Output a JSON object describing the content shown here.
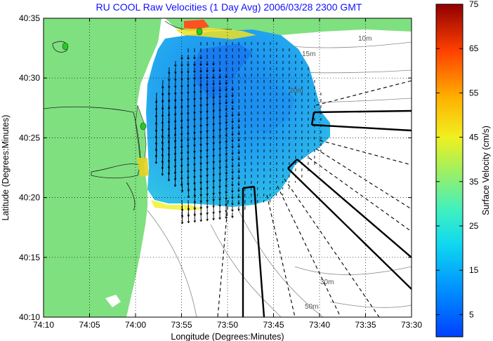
{
  "title": "RU COOL Raw Velocities (1 Day Avg) 2006/03/28 2300 GMT",
  "map": {
    "x_axis_label": "Longitude (Degrees:Minutes)",
    "y_axis_label": "Latitude (Degrees:Minutes)",
    "x_ticks": [
      "74:10",
      "74:05",
      "74:00",
      "73:55",
      "73:50",
      "73:45",
      "73:40",
      "73:35",
      "73:30"
    ],
    "y_ticks": [
      "40:35",
      "40:30",
      "40:25",
      "40:20",
      "40:15",
      "40:10"
    ],
    "x_range_minutes_west": [
      -74.1667,
      -73.5
    ],
    "y_range_degrees": [
      40.1667,
      40.5833
    ],
    "grid": "dotted",
    "land_color": "#7fe07f",
    "contour_labels": [
      "10m",
      "15m",
      "20m",
      "30m",
      "50m"
    ],
    "station_marker_color": "#22cc22"
  },
  "colorbar": {
    "label": "Surface Velocity (cm/s)",
    "ticks": [
      "75",
      "65",
      "55",
      "45",
      "35",
      "25",
      "15",
      "5"
    ],
    "range": [
      0,
      75
    ],
    "colormap": "jet"
  }
}
